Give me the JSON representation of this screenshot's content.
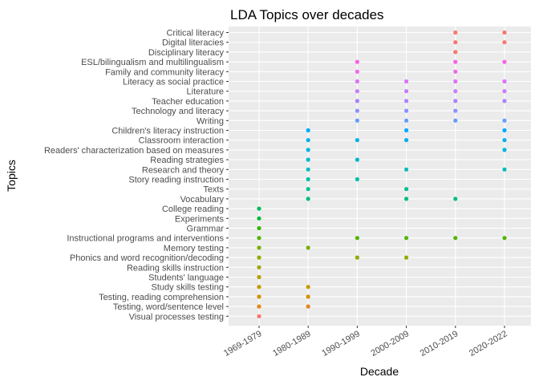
{
  "chart_data": {
    "type": "scatter",
    "title": "LDA Topics over decades",
    "xlabel": "Decade",
    "ylabel": "Topics",
    "grid": true,
    "legend": "none",
    "x_categories": [
      "1969-1979",
      "1980-1989",
      "1990-1999",
      "2000-2009",
      "2010-2019",
      "2020-2022"
    ],
    "topics": [
      {
        "name": "Critical literacy",
        "color": "#F8766D",
        "decades": [
          "2010-2019",
          "2020-2022"
        ]
      },
      {
        "name": "Digital literacies",
        "color": "#F8766D",
        "decades": [
          "2010-2019",
          "2020-2022"
        ]
      },
      {
        "name": "Disciplinary literacy",
        "color": "#F8766D",
        "decades": [
          "2010-2019"
        ]
      },
      {
        "name": "ESL/bilingualism and multilingualism",
        "color": "#F564E3",
        "decades": [
          "1990-1999",
          "2010-2019",
          "2020-2022"
        ]
      },
      {
        "name": "Family and community literacy",
        "color": "#EF67EB",
        "decades": [
          "1990-1999",
          "2010-2019"
        ]
      },
      {
        "name": "Literacy as social practice",
        "color": "#DD71FA",
        "decades": [
          "1990-1999",
          "2000-2009",
          "2010-2019",
          "2020-2022"
        ]
      },
      {
        "name": "Literature",
        "color": "#C77CFF",
        "decades": [
          "1990-1999",
          "2000-2009",
          "2010-2019",
          "2020-2022"
        ]
      },
      {
        "name": "Teacher education",
        "color": "#AB82FF",
        "decades": [
          "1990-1999",
          "2000-2009",
          "2010-2019",
          "2020-2022"
        ]
      },
      {
        "name": "Technology and literacy",
        "color": "#8B93FF",
        "decades": [
          "1990-1999",
          "2000-2009",
          "2010-2019"
        ]
      },
      {
        "name": "Writing",
        "color": "#619CFF",
        "decades": [
          "1990-1999",
          "2000-2009",
          "2010-2019",
          "2020-2022"
        ]
      },
      {
        "name": "Children's literacy instruction",
        "color": "#00A9FF",
        "decades": [
          "1980-1989",
          "2000-2009",
          "2020-2022"
        ]
      },
      {
        "name": "Classroom interaction",
        "color": "#00AFEF",
        "decades": [
          "1980-1989",
          "1990-1999",
          "2000-2009",
          "2020-2022"
        ]
      },
      {
        "name": "Readers' characterization based on measures",
        "color": "#00B4E0",
        "decades": [
          "1980-1989",
          "2020-2022"
        ]
      },
      {
        "name": "Reading strategies",
        "color": "#00B8CF",
        "decades": [
          "1980-1989",
          "1990-1999"
        ]
      },
      {
        "name": "Research and theory",
        "color": "#00BCC0",
        "decades": [
          "1980-1989",
          "2000-2009",
          "2020-2022"
        ]
      },
      {
        "name": "Story reading instruction",
        "color": "#00BEAB",
        "decades": [
          "1980-1989",
          "1990-1999"
        ]
      },
      {
        "name": "Texts",
        "color": "#00C094",
        "decades": [
          "1980-1989",
          "2000-2009"
        ]
      },
      {
        "name": "Vocabulary",
        "color": "#00BF7D",
        "decades": [
          "1980-1989",
          "2000-2009",
          "2010-2019"
        ]
      },
      {
        "name": "College reading",
        "color": "#00BD5C",
        "decades": [
          "1969-1979"
        ]
      },
      {
        "name": "Experiments",
        "color": "#00BA38",
        "decades": [
          "1969-1979"
        ]
      },
      {
        "name": "Grammar",
        "color": "#39B600",
        "decades": [
          "1969-1979"
        ]
      },
      {
        "name": "Instructional programs and interventions",
        "color": "#53B400",
        "decades": [
          "1969-1979",
          "1990-1999",
          "2000-2009",
          "2010-2019",
          "2020-2022"
        ]
      },
      {
        "name": "Memory testing",
        "color": "#7CAE00",
        "decades": [
          "1969-1979",
          "1980-1989"
        ]
      },
      {
        "name": "Phonics and word recognition/decoding",
        "color": "#93AA00",
        "decades": [
          "1969-1979",
          "1990-1999",
          "2000-2009"
        ]
      },
      {
        "name": "Reading skills instruction",
        "color": "#A3A500",
        "decades": [
          "1969-1979"
        ]
      },
      {
        "name": "Students' language",
        "color": "#B79F00",
        "decades": [
          "1969-1979"
        ]
      },
      {
        "name": "Study skills testing",
        "color": "#C49A00",
        "decades": [
          "1969-1979",
          "1980-1989"
        ]
      },
      {
        "name": "Testing, reading comprehension",
        "color": "#D39200",
        "decades": [
          "1969-1979",
          "1980-1989"
        ]
      },
      {
        "name": "Testing, word/sentence level",
        "color": "#E7861B",
        "decades": [
          "1969-1979",
          "1980-1989"
        ]
      },
      {
        "name": "Visual processes testing",
        "color": "#F8766D",
        "decades": [
          "1969-1979"
        ]
      }
    ]
  }
}
